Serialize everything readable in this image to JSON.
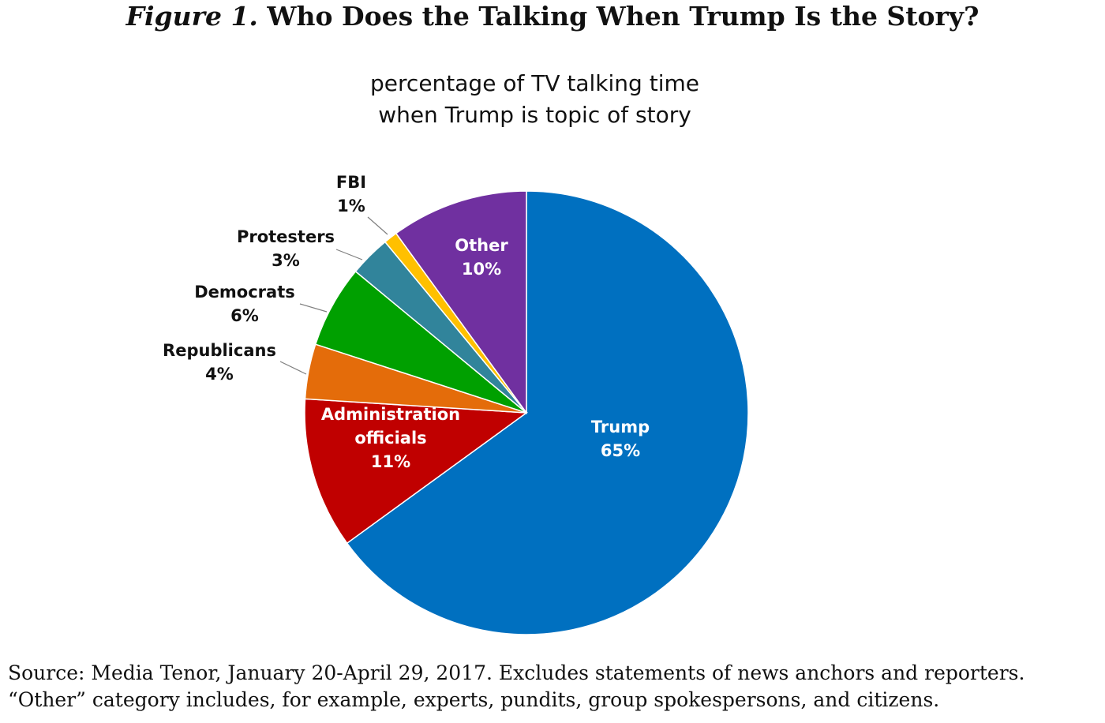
{
  "figure": {
    "label": "Figure 1.",
    "title": "Who Does the Talking When Trump Is the Story?"
  },
  "chart_data": {
    "type": "pie",
    "subtitle_lines": [
      "percentage of TV talking time",
      "when Trump is topic of story"
    ],
    "start_angle_deg": 0,
    "direction": "clockwise",
    "slices": [
      {
        "label_lines": [
          "Trump"
        ],
        "value": 65,
        "value_label": "65%",
        "color": "#0070c0",
        "label_placement": "inside",
        "text_color": "#ffffff"
      },
      {
        "label_lines": [
          "Administration",
          "officials"
        ],
        "value": 11,
        "value_label": "11%",
        "color": "#c00000",
        "label_placement": "inside",
        "text_color": "#ffffff"
      },
      {
        "label_lines": [
          "Republicans"
        ],
        "value": 4,
        "value_label": "4%",
        "color": "#e46c0a",
        "label_placement": "outside",
        "text_color": "#111111"
      },
      {
        "label_lines": [
          "Democrats"
        ],
        "value": 6,
        "value_label": "6%",
        "color": "#00a000",
        "label_placement": "outside",
        "text_color": "#111111"
      },
      {
        "label_lines": [
          "Protesters"
        ],
        "value": 3,
        "value_label": "3%",
        "color": "#31849b",
        "label_placement": "outside",
        "text_color": "#111111"
      },
      {
        "label_lines": [
          "FBI"
        ],
        "value": 1,
        "value_label": "1%",
        "color": "#ffc000",
        "label_placement": "outside",
        "text_color": "#111111"
      },
      {
        "label_lines": [
          "Other"
        ],
        "value": 10,
        "value_label": "10%",
        "color": "#7030a0",
        "label_placement": "inside",
        "text_color": "#ffffff"
      }
    ]
  },
  "source": {
    "line1": "Source: Media Tenor, January 20-April 29, 2017. Excludes statements of news anchors and reporters.",
    "line2": "“Other” category includes, for example, experts, pundits, group spokespersons, and citizens."
  }
}
